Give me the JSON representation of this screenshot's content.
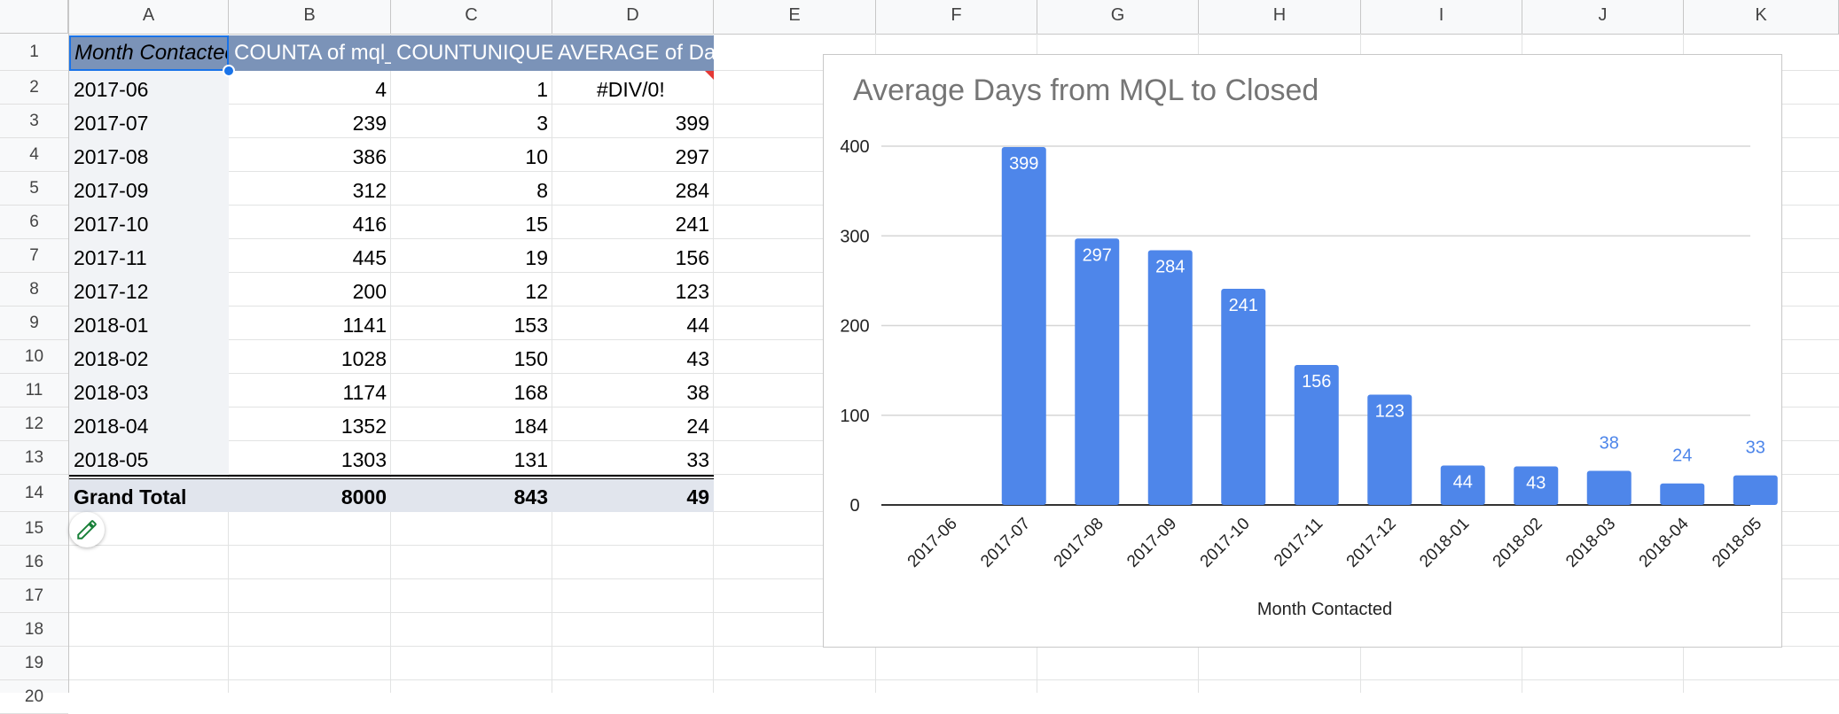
{
  "columns": [
    "A",
    "B",
    "C",
    "D",
    "E",
    "F",
    "G",
    "H",
    "I",
    "J",
    "K"
  ],
  "rows": [
    "1",
    "2",
    "3",
    "4",
    "5",
    "6",
    "7",
    "8",
    "9",
    "10",
    "11",
    "12",
    "13",
    "14",
    "15",
    "16",
    "17",
    "18",
    "19",
    "20"
  ],
  "table": {
    "headers": [
      "Month Contacted",
      "COUNTA of mql_",
      "COUNTUNIQUE",
      "AVERAGE of Da"
    ],
    "rows": [
      {
        "month": "2017-06",
        "counta": "4",
        "unique": "1",
        "avg": "#DIV/0!"
      },
      {
        "month": "2017-07",
        "counta": "239",
        "unique": "3",
        "avg": "399"
      },
      {
        "month": "2017-08",
        "counta": "386",
        "unique": "10",
        "avg": "297"
      },
      {
        "month": "2017-09",
        "counta": "312",
        "unique": "8",
        "avg": "284"
      },
      {
        "month": "2017-10",
        "counta": "416",
        "unique": "15",
        "avg": "241"
      },
      {
        "month": "2017-11",
        "counta": "445",
        "unique": "19",
        "avg": "156"
      },
      {
        "month": "2017-12",
        "counta": "200",
        "unique": "12",
        "avg": "123"
      },
      {
        "month": "2018-01",
        "counta": "1141",
        "unique": "153",
        "avg": "44"
      },
      {
        "month": "2018-02",
        "counta": "1028",
        "unique": "150",
        "avg": "43"
      },
      {
        "month": "2018-03",
        "counta": "1174",
        "unique": "168",
        "avg": "38"
      },
      {
        "month": "2018-04",
        "counta": "1352",
        "unique": "184",
        "avg": "24"
      },
      {
        "month": "2018-05",
        "counta": "1303",
        "unique": "131",
        "avg": "33"
      }
    ],
    "total": {
      "label": "Grand Total",
      "counta": "8000",
      "unique": "843",
      "avg": "49"
    }
  },
  "icons": {
    "edit": "pencil-icon"
  },
  "colors": {
    "bar": "#4e86ea",
    "header": "#7b93b8",
    "selection": "#1a73e8",
    "edit": "#188038"
  },
  "chart_data": {
    "type": "bar",
    "title": "Average Days from MQL to Closed",
    "xlabel": "Month Contacted",
    "ylabel": "",
    "categories": [
      "2017-06",
      "2017-07",
      "2017-08",
      "2017-09",
      "2017-10",
      "2017-11",
      "2017-12",
      "2018-01",
      "2018-02",
      "2018-03",
      "2018-04",
      "2018-05"
    ],
    "values": [
      0,
      399,
      297,
      284,
      241,
      156,
      123,
      44,
      43,
      38,
      24,
      33
    ],
    "data_labels": [
      "",
      "399",
      "297",
      "284",
      "241",
      "156",
      "123",
      "44",
      "43",
      "38",
      "24",
      "33"
    ],
    "ylim": [
      0,
      400
    ],
    "yticks": [
      "0",
      "100",
      "200",
      "300",
      "400"
    ],
    "grid": true,
    "legend": "none"
  }
}
